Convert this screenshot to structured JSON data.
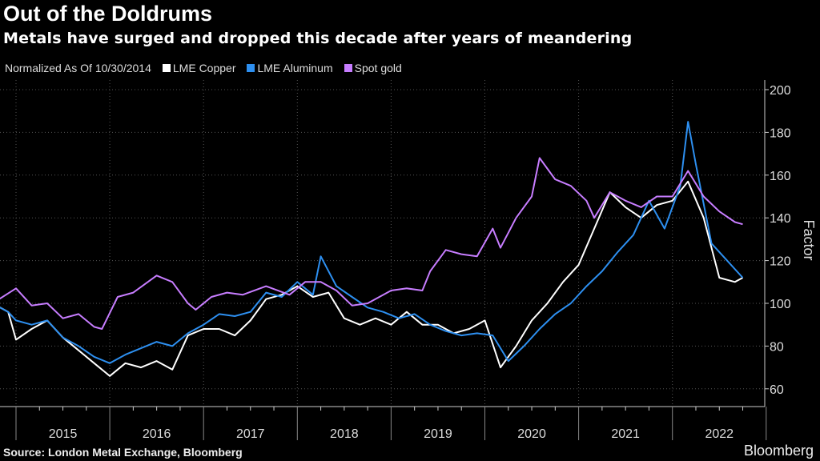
{
  "title": "Out of the Doldrums",
  "subtitle": "Metals have surged and dropped this decade after years of meandering",
  "source": "Source: London Metal Exchange, Bloomberg",
  "brand": "Bloomberg",
  "chart_data": {
    "type": "line",
    "legend_note": "Normalized As Of 10/30/2014",
    "ylabel": "Factor",
    "ylim": [
      55,
      205
    ],
    "yticks": [
      60,
      80,
      100,
      120,
      140,
      160,
      180,
      200
    ],
    "xlim": [
      "2014-10",
      "2022-12"
    ],
    "xticks": [
      "2015",
      "2016",
      "2017",
      "2018",
      "2019",
      "2020",
      "2021",
      "2022"
    ],
    "grid": true,
    "legend_position": "top-left",
    "series": [
      {
        "name": "LME Copper",
        "color": "#ffffff",
        "points": [
          [
            "2014-10",
            100
          ],
          [
            "2014-12",
            96
          ],
          [
            "2015-01",
            83
          ],
          [
            "2015-03",
            88
          ],
          [
            "2015-05",
            92
          ],
          [
            "2015-07",
            84
          ],
          [
            "2015-09",
            78
          ],
          [
            "2015-11",
            72
          ],
          [
            "2016-01",
            66
          ],
          [
            "2016-03",
            72
          ],
          [
            "2016-05",
            70
          ],
          [
            "2016-07",
            73
          ],
          [
            "2016-09",
            69
          ],
          [
            "2016-11",
            85
          ],
          [
            "2017-01",
            88
          ],
          [
            "2017-03",
            88
          ],
          [
            "2017-05",
            85
          ],
          [
            "2017-07",
            92
          ],
          [
            "2017-09",
            102
          ],
          [
            "2017-11",
            104
          ],
          [
            "2018-01",
            108
          ],
          [
            "2018-03",
            103
          ],
          [
            "2018-05",
            105
          ],
          [
            "2018-07",
            93
          ],
          [
            "2018-09",
            90
          ],
          [
            "2018-11",
            93
          ],
          [
            "2019-01",
            90
          ],
          [
            "2019-03",
            96
          ],
          [
            "2019-05",
            90
          ],
          [
            "2019-07",
            90
          ],
          [
            "2019-09",
            86
          ],
          [
            "2019-11",
            88
          ],
          [
            "2020-01",
            92
          ],
          [
            "2020-03",
            70
          ],
          [
            "2020-05",
            80
          ],
          [
            "2020-07",
            92
          ],
          [
            "2020-09",
            100
          ],
          [
            "2020-11",
            110
          ],
          [
            "2021-01",
            118
          ],
          [
            "2021-03",
            135
          ],
          [
            "2021-05",
            152
          ],
          [
            "2021-07",
            145
          ],
          [
            "2021-09",
            140
          ],
          [
            "2021-11",
            146
          ],
          [
            "2022-01",
            148
          ],
          [
            "2022-03",
            157
          ],
          [
            "2022-05",
            140
          ],
          [
            "2022-07",
            112
          ],
          [
            "2022-09",
            110
          ],
          [
            "2022-10",
            112
          ]
        ]
      },
      {
        "name": "LME Aluminum",
        "color": "#2d8ff0",
        "points": [
          [
            "2014-10",
            100
          ],
          [
            "2014-12",
            96
          ],
          [
            "2015-01",
            92
          ],
          [
            "2015-03",
            90
          ],
          [
            "2015-05",
            92
          ],
          [
            "2015-07",
            84
          ],
          [
            "2015-09",
            80
          ],
          [
            "2015-11",
            75
          ],
          [
            "2016-01",
            72
          ],
          [
            "2016-03",
            76
          ],
          [
            "2016-05",
            79
          ],
          [
            "2016-07",
            82
          ],
          [
            "2016-09",
            80
          ],
          [
            "2016-11",
            86
          ],
          [
            "2017-01",
            90
          ],
          [
            "2017-03",
            95
          ],
          [
            "2017-05",
            94
          ],
          [
            "2017-07",
            96
          ],
          [
            "2017-09",
            105
          ],
          [
            "2017-11",
            103
          ],
          [
            "2018-01",
            110
          ],
          [
            "2018-03",
            104
          ],
          [
            "2018-04",
            122
          ],
          [
            "2018-06",
            108
          ],
          [
            "2018-08",
            103
          ],
          [
            "2018-10",
            98
          ],
          [
            "2018-12",
            96
          ],
          [
            "2019-02",
            93
          ],
          [
            "2019-04",
            95
          ],
          [
            "2019-06",
            90
          ],
          [
            "2019-08",
            87
          ],
          [
            "2019-10",
            85
          ],
          [
            "2019-12",
            86
          ],
          [
            "2020-02",
            85
          ],
          [
            "2020-04",
            73
          ],
          [
            "2020-06",
            80
          ],
          [
            "2020-08",
            88
          ],
          [
            "2020-10",
            95
          ],
          [
            "2020-12",
            100
          ],
          [
            "2021-02",
            108
          ],
          [
            "2021-04",
            115
          ],
          [
            "2021-06",
            124
          ],
          [
            "2021-08",
            132
          ],
          [
            "2021-10",
            148
          ],
          [
            "2021-12",
            135
          ],
          [
            "2022-02",
            155
          ],
          [
            "2022-03",
            185
          ],
          [
            "2022-04",
            165
          ],
          [
            "2022-06",
            128
          ],
          [
            "2022-08",
            120
          ],
          [
            "2022-10",
            112
          ]
        ]
      },
      {
        "name": "Spot gold",
        "color": "#c77dff",
        "points": [
          [
            "2014-10",
            100
          ],
          [
            "2015-01",
            107
          ],
          [
            "2015-03",
            99
          ],
          [
            "2015-05",
            100
          ],
          [
            "2015-07",
            93
          ],
          [
            "2015-09",
            95
          ],
          [
            "2015-11",
            89
          ],
          [
            "2015-12",
            88
          ],
          [
            "2016-02",
            103
          ],
          [
            "2016-04",
            105
          ],
          [
            "2016-07",
            113
          ],
          [
            "2016-09",
            110
          ],
          [
            "2016-11",
            100
          ],
          [
            "2016-12",
            97
          ],
          [
            "2017-02",
            103
          ],
          [
            "2017-04",
            105
          ],
          [
            "2017-06",
            104
          ],
          [
            "2017-09",
            108
          ],
          [
            "2017-12",
            104
          ],
          [
            "2018-02",
            110
          ],
          [
            "2018-04",
            110
          ],
          [
            "2018-06",
            106
          ],
          [
            "2018-08",
            99
          ],
          [
            "2018-10",
            100
          ],
          [
            "2019-01",
            106
          ],
          [
            "2019-03",
            107
          ],
          [
            "2019-05",
            106
          ],
          [
            "2019-06",
            115
          ],
          [
            "2019-08",
            125
          ],
          [
            "2019-10",
            123
          ],
          [
            "2019-12",
            122
          ],
          [
            "2020-02",
            135
          ],
          [
            "2020-03",
            126
          ],
          [
            "2020-05",
            140
          ],
          [
            "2020-07",
            150
          ],
          [
            "2020-08",
            168
          ],
          [
            "2020-10",
            158
          ],
          [
            "2020-12",
            155
          ],
          [
            "2021-02",
            148
          ],
          [
            "2021-03",
            140
          ],
          [
            "2021-05",
            152
          ],
          [
            "2021-07",
            148
          ],
          [
            "2021-09",
            145
          ],
          [
            "2021-11",
            150
          ],
          [
            "2022-01",
            150
          ],
          [
            "2022-03",
            162
          ],
          [
            "2022-05",
            150
          ],
          [
            "2022-07",
            143
          ],
          [
            "2022-09",
            138
          ],
          [
            "2022-10",
            137
          ]
        ]
      }
    ]
  }
}
